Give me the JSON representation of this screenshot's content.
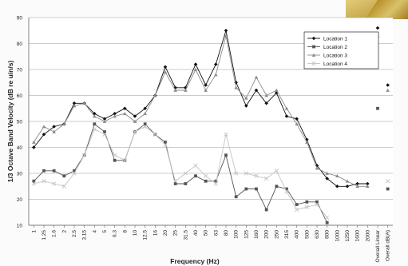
{
  "chart_data": {
    "type": "line",
    "ylabel": "1/3 Octave Band Velocity (dB re uin/s)",
    "xlabel": "Frequency (Hz)",
    "ylim": [
      10,
      90
    ],
    "yticks": [
      "10",
      "20",
      "30",
      "40",
      "50",
      "60",
      "70",
      "80",
      "90"
    ],
    "categories": [
      "1",
      "1.25",
      "1.6",
      "2",
      "2.5",
      "3.15",
      "4",
      "5",
      "6.3",
      "8",
      "10",
      "12.5",
      "16",
      "20",
      "25",
      "31.5",
      "40",
      "50",
      "63",
      "80",
      "100",
      "125",
      "160",
      "200",
      "250",
      "315",
      "400",
      "500",
      "630",
      "800",
      "1000",
      "1250",
      "1600",
      "2000",
      "Overall Linear",
      "Overall dB(A)"
    ],
    "grid": true,
    "legend_position": "top-right",
    "series": [
      {
        "name": "Location 1",
        "color": "#111111",
        "marker": "diamond",
        "values": [
          40,
          45,
          48,
          49,
          57,
          57,
          53,
          51,
          53,
          55,
          52,
          55,
          60,
          71,
          63,
          63,
          72,
          64,
          72,
          85,
          65,
          56,
          62,
          57,
          61,
          52,
          51,
          43,
          33,
          28,
          25,
          25,
          26,
          26,
          86,
          64
        ]
      },
      {
        "name": "Location 2",
        "color": "#555555",
        "marker": "square",
        "values": [
          27,
          31,
          31,
          29,
          31,
          37,
          49,
          46,
          35,
          35,
          46,
          49,
          45,
          42,
          26,
          26,
          29,
          27,
          27,
          37,
          21,
          24,
          24,
          16,
          25,
          24,
          18,
          19,
          19,
          11,
          null,
          null,
          null,
          null,
          55,
          24
        ]
      },
      {
        "name": "Location 3",
        "color": "#8c8c8c",
        "marker": "triangle",
        "values": [
          42,
          48,
          46,
          49,
          56,
          57,
          52,
          50,
          52,
          53,
          50,
          53,
          60,
          69,
          62,
          62,
          70,
          62,
          68,
          83,
          63,
          59,
          67,
          60,
          62,
          55,
          49,
          42,
          32,
          30,
          29,
          27,
          25,
          25,
          83,
          62
        ]
      },
      {
        "name": "Location 4",
        "color": "#c4c4c4",
        "marker": "x",
        "values": [
          26,
          27,
          26,
          25,
          30,
          37,
          47,
          45,
          37,
          35,
          46,
          48,
          45,
          41,
          27,
          30,
          33,
          29,
          26,
          45,
          30,
          30,
          29,
          28,
          31,
          23,
          16,
          17,
          18,
          13,
          null,
          null,
          null,
          null,
          null,
          27
        ]
      }
    ]
  }
}
